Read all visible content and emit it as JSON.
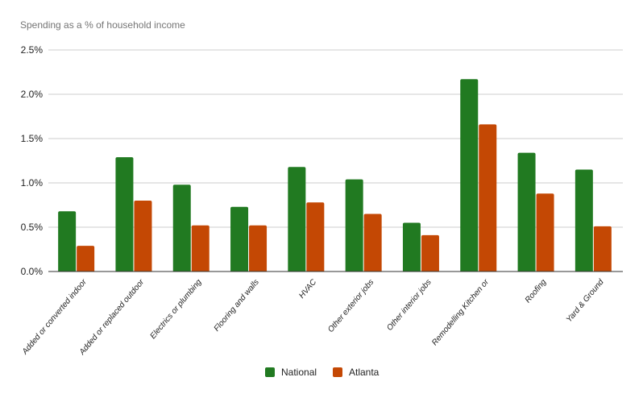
{
  "chart_data": {
    "type": "bar",
    "title": "Spending as a % of household income",
    "xlabel": "",
    "ylabel": "",
    "ylim": [
      0,
      2.5
    ],
    "yticks": [
      "0.0%",
      "0.5%",
      "1.0%",
      "1.5%",
      "2.0%",
      "2.5%"
    ],
    "grid": true,
    "legend_position": "bottom",
    "categories": [
      "Added or converted indoor",
      "Added or replaced outdoor",
      "Electrics or plumbing",
      "Flooring and walls",
      "HVAC",
      "Other exterior jobs",
      "Other interior jobs",
      "Remodelling Kitchen or",
      "Roofing",
      "Yard & Ground"
    ],
    "series": [
      {
        "name": "National",
        "color": "#217a21",
        "values": [
          0.68,
          1.29,
          0.98,
          0.73,
          1.18,
          1.04,
          0.55,
          2.17,
          1.34,
          1.15
        ]
      },
      {
        "name": "Atlanta",
        "color": "#c44804",
        "values": [
          0.29,
          0.8,
          0.52,
          0.52,
          0.78,
          0.65,
          0.41,
          1.66,
          0.88,
          0.51
        ]
      }
    ]
  }
}
